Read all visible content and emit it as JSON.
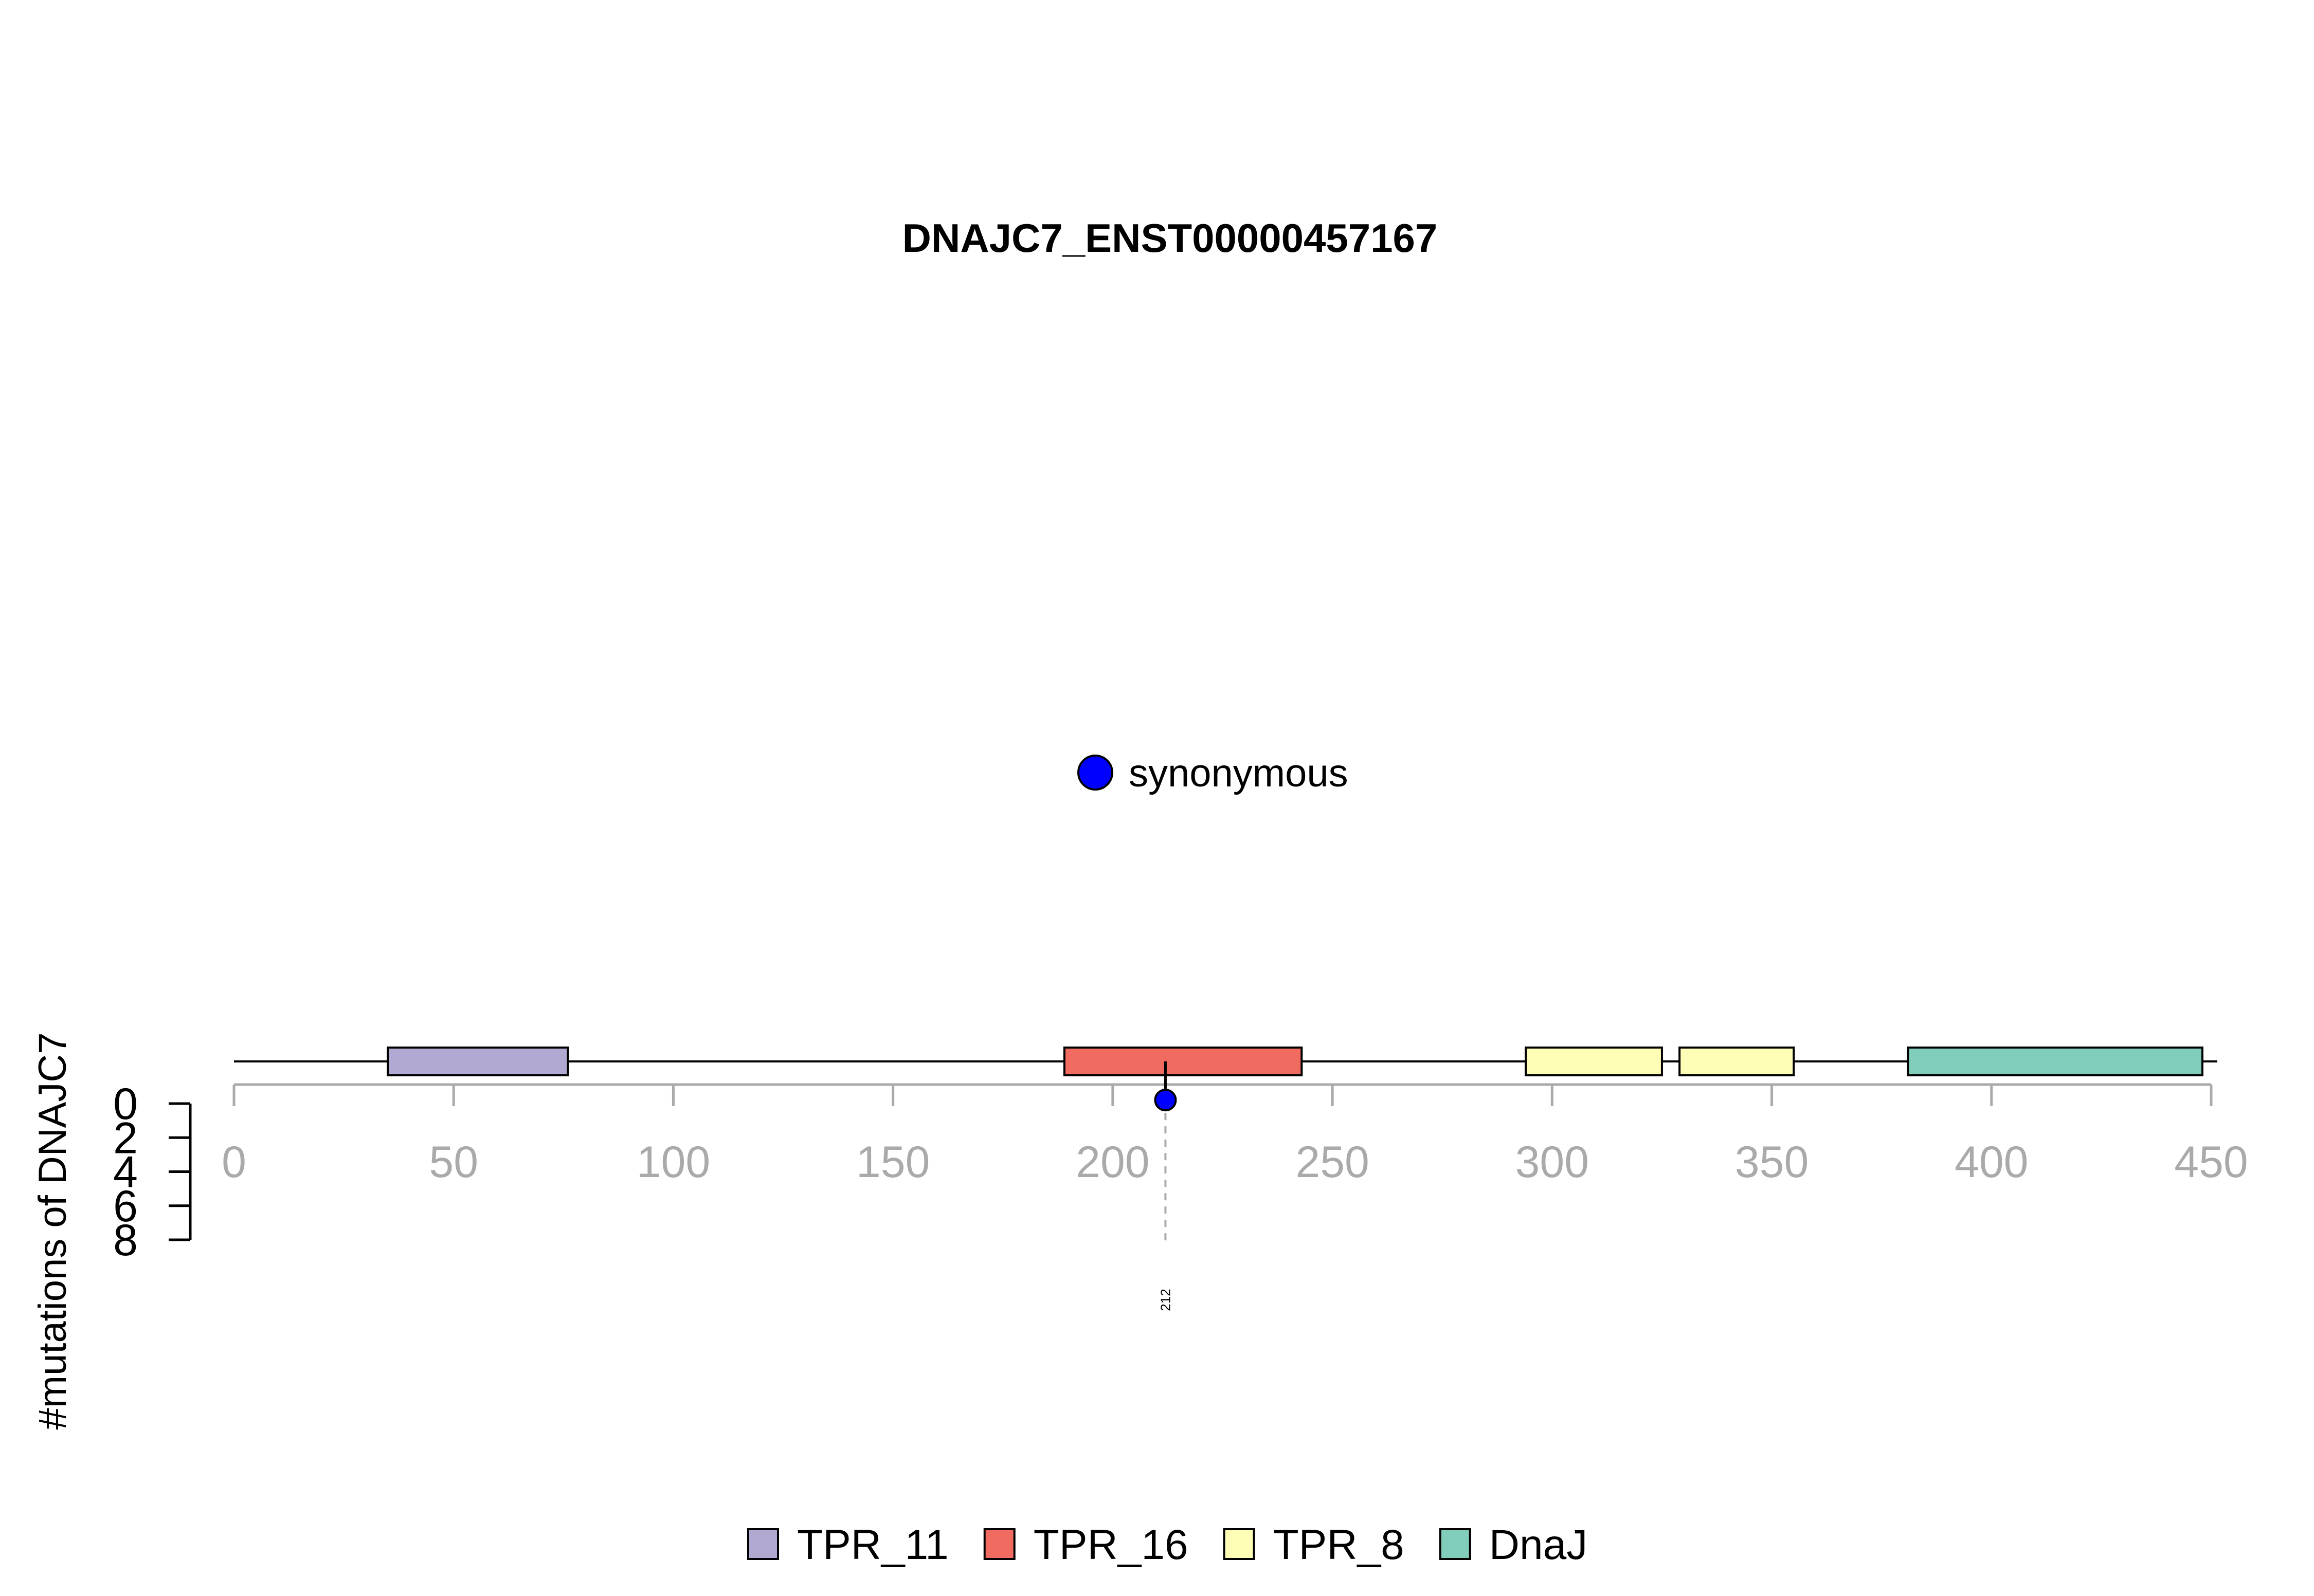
{
  "chart_data": {
    "type": "lollipop",
    "title": "DNAJC7_ENST00000457167",
    "ylabel": "#mutations of DNAJC7",
    "x_ticks": [
      0,
      50,
      100,
      150,
      200,
      250,
      300,
      350,
      400,
      450
    ],
    "xlim": [
      0,
      450
    ],
    "y_ticks": [
      0,
      2,
      4,
      6,
      8
    ],
    "ylim": [
      0,
      8
    ],
    "protein_length": 450,
    "domains": [
      {
        "name": "TPR_11",
        "start": 35,
        "end": 76,
        "color": "#b1a9d1"
      },
      {
        "name": "TPR_16",
        "start": 189,
        "end": 243,
        "color": "#f26b60"
      },
      {
        "name": "TPR_8",
        "start": 294,
        "end": 325,
        "color": "#fdfdb5"
      },
      {
        "name": "TPR_8",
        "start": 329,
        "end": 355,
        "color": "#fdfdb5"
      },
      {
        "name": "DnaJ",
        "start": 381,
        "end": 448,
        "color": "#80cdbb"
      }
    ],
    "mutations": [
      {
        "position": 212,
        "count": 1,
        "type": "synonymous",
        "label": "212"
      }
    ],
    "mutation_types": [
      {
        "name": "synonymous",
        "color": "#0000ff"
      }
    ],
    "domain_legend": [
      {
        "name": "TPR_11",
        "color": "#b1a9d1"
      },
      {
        "name": "TPR_16",
        "color": "#f26b60"
      },
      {
        "name": "TPR_8",
        "color": "#fdfdb5"
      },
      {
        "name": "DnaJ",
        "color": "#80cdbb"
      }
    ],
    "axis_color": "#aaaaaa"
  }
}
